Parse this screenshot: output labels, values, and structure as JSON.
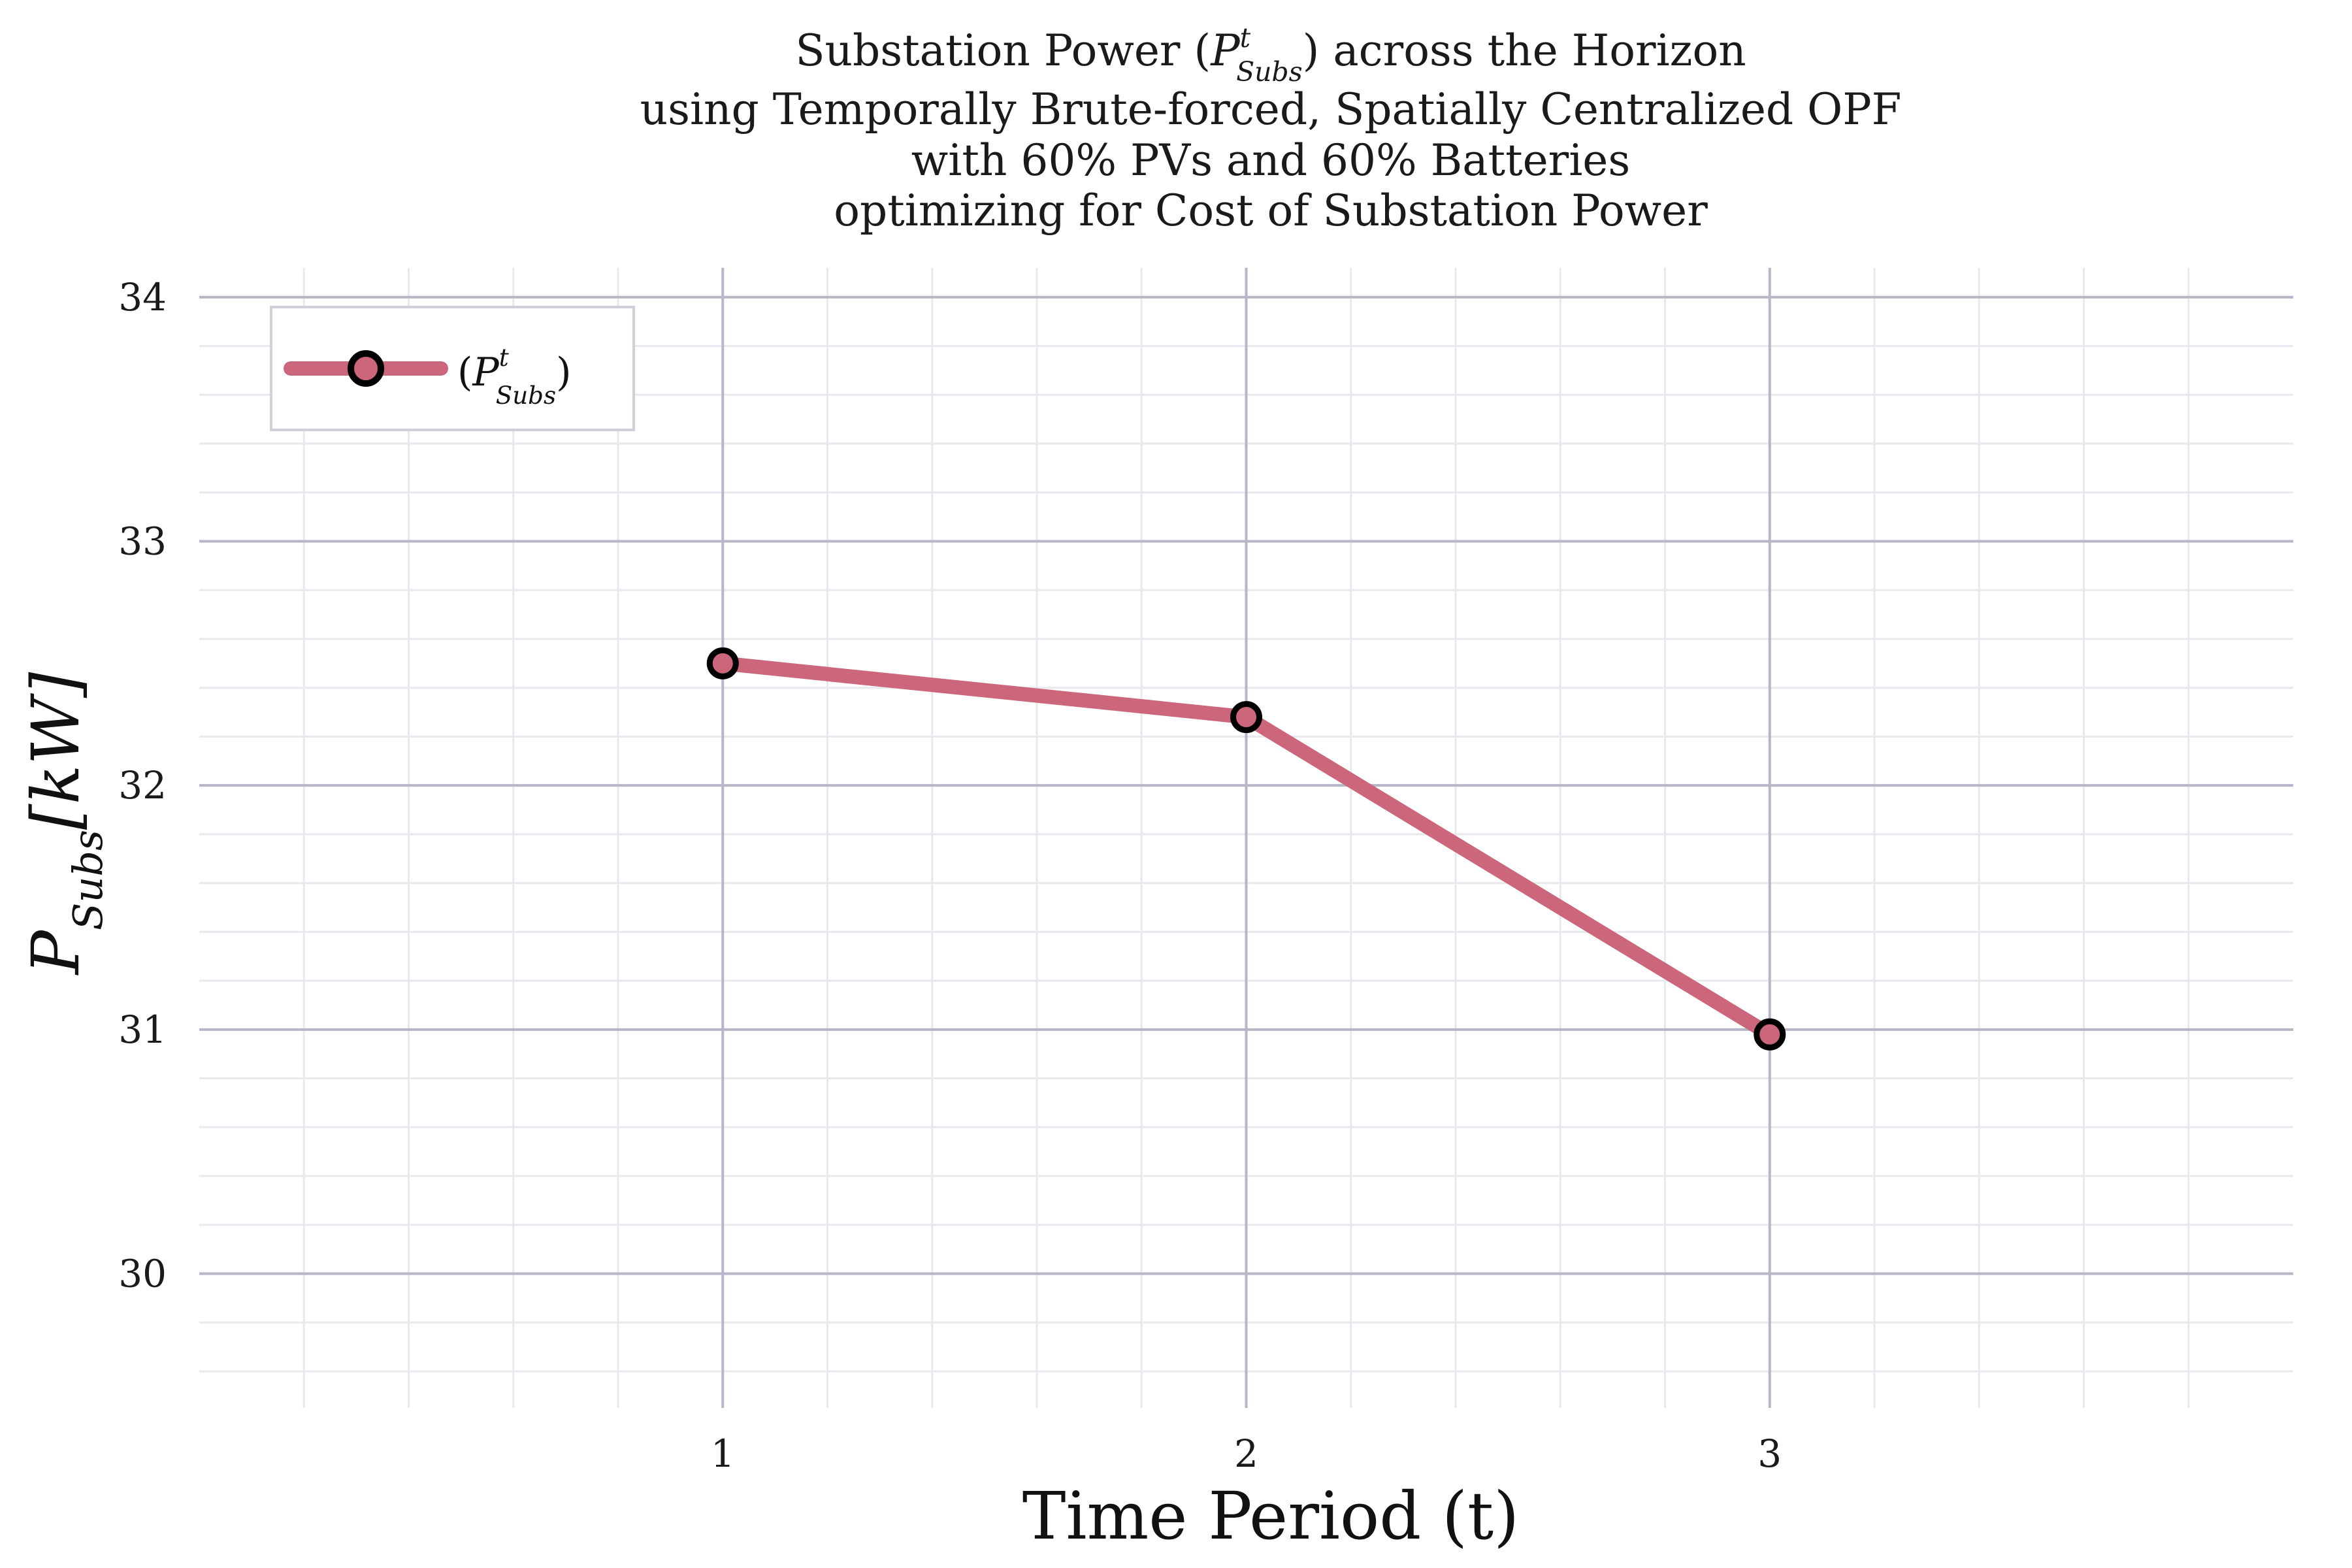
{
  "chart_data": {
    "type": "line",
    "title_lines": [
      {
        "pre": "Substation Power (",
        "sym": "P",
        "sup": "t",
        "sub": "Subs",
        "post": ") across the Horizon"
      },
      {
        "text": "using Temporally Brute-forced, Spatially Centralized OPF"
      },
      {
        "text": "with 60% PVs and 60% Batteries"
      },
      {
        "text": "optimizing for Cost of Substation Power"
      }
    ],
    "xlabel": "Time Period (t)",
    "ylabel": {
      "sym": "P",
      "sub": "Subs",
      "unit": "[kW]"
    },
    "x": [
      1,
      2,
      3
    ],
    "x_ticks": [
      "1",
      "2",
      "3"
    ],
    "xlim": [
      0,
      4
    ],
    "y_ticks": [
      "30",
      "31",
      "32",
      "33",
      "34"
    ],
    "ylim": [
      29.45,
      34.12
    ],
    "grid": true,
    "legend_position": "top-left",
    "series": [
      {
        "name": {
          "sym": "P",
          "sup": "t",
          "sub": "Subs"
        },
        "values": [
          32.5,
          32.28,
          30.98
        ],
        "color": "#cc667a",
        "marker_edge": "#000000"
      }
    ]
  }
}
